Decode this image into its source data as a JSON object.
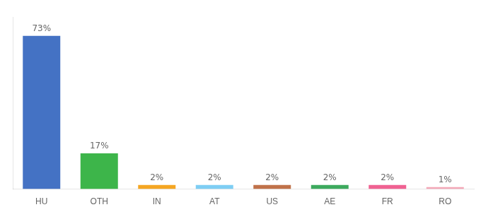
{
  "chart_data": {
    "type": "bar",
    "categories": [
      "HU",
      "OTH",
      "IN",
      "AT",
      "US",
      "AE",
      "FR",
      "RO"
    ],
    "values": [
      73,
      17,
      2,
      2,
      2,
      2,
      2,
      1
    ],
    "value_labels": [
      "73%",
      "17%",
      "2%",
      "2%",
      "2%",
      "2%",
      "2%",
      "1%"
    ],
    "colors": [
      "#4472c4",
      "#3db54a",
      "#f5a623",
      "#7ecef4",
      "#c0724a",
      "#3daa5e",
      "#f06292",
      "#f4a8b8"
    ],
    "ylim": [
      0,
      82
    ],
    "grid": false,
    "data_labels": true,
    "tick_labels": "x"
  }
}
